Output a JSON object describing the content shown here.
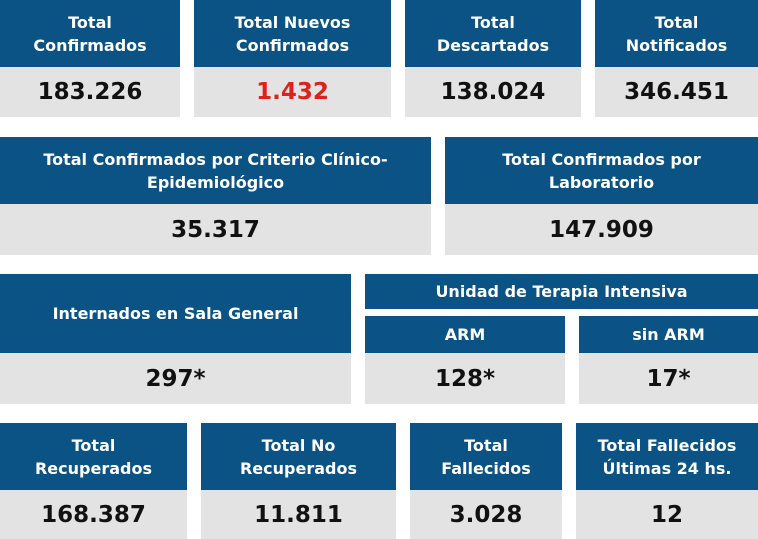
{
  "row1": [
    {
      "label": "Total Confirmados",
      "value": "183.226"
    },
    {
      "label": "Total Nuevos Confirmados",
      "value": "1.432"
    },
    {
      "label": "Total Descartados",
      "value": "138.024"
    },
    {
      "label": "Total Notificados",
      "value": "346.451"
    }
  ],
  "row2": [
    {
      "label": "Total Confirmados por Criterio Clínico-Epidemiológico",
      "value": "35.317"
    },
    {
      "label": "Total Confirmados por Laboratorio",
      "value": "147.909"
    }
  ],
  "row3": {
    "sala": {
      "label": "Internados en Sala General",
      "value": "297*"
    },
    "uti": {
      "label": "Unidad de Terapia Intensiva",
      "arm": {
        "label": "ARM",
        "value": "128*"
      },
      "sin_arm": {
        "label": "sin ARM",
        "value": "17*"
      }
    }
  },
  "row4": [
    {
      "label": "Total Recuperados",
      "value": "168.387"
    },
    {
      "label": "Total No Recuperados",
      "value": "11.811"
    },
    {
      "label": "Total Fallecidos",
      "value": "3.028"
    },
    {
      "label": "Total Fallecidos Últimas 24 hs.",
      "value": "12"
    }
  ],
  "colors": {
    "header": "#0a5384",
    "value_bg": "#e3e3e3",
    "highlight": "#e0201b"
  }
}
